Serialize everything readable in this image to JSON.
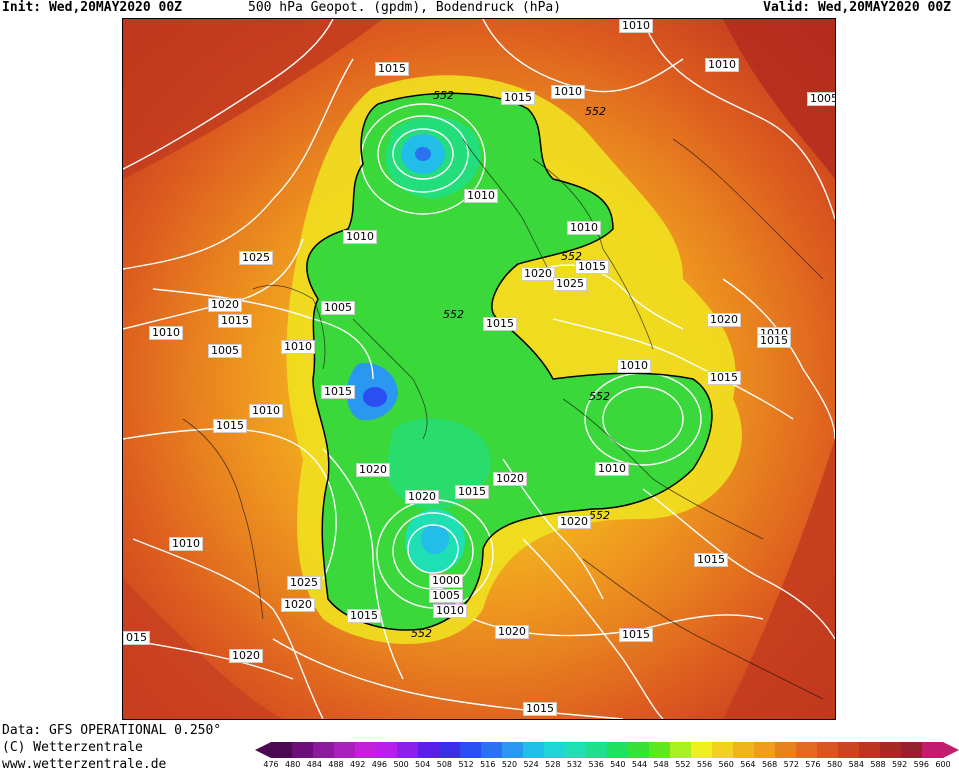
{
  "header": {
    "init": "Init: Wed,20MAY2020 00Z",
    "title": "500 hPa Geopot. (gpdm), Bodendruck (hPa)",
    "valid": "Valid: Wed,20MAY2020 00Z"
  },
  "isobar_labels": [
    "1010",
    "1015",
    "1010",
    "1005",
    "1015",
    "1010",
    "552",
    "1010",
    "1025",
    "1010",
    "1020",
    "1015",
    "1010",
    "1005",
    "1010",
    "1015",
    "1005",
    "1010",
    "1015",
    "1020",
    "1025",
    "1015",
    "1010",
    "1010",
    "1020",
    "1015",
    "552",
    "552",
    "1015",
    "1020",
    "1015",
    "1010",
    "1020",
    "1020",
    "1015",
    "1010",
    "1015",
    "1000",
    "1005",
    "1010",
    "1025",
    "1020",
    "1015",
    "1020",
    "1015",
    "552",
    "1010",
    "1020",
    "1015",
    "015",
    "1020"
  ],
  "geopotential_labels": [
    "552",
    "552",
    "552",
    "552",
    "552",
    "552",
    "552"
  ],
  "footer": {
    "line1": "Data: GFS OPERATIONAL 0.250°",
    "line2": "(C) Wetterzentrale",
    "line3": "www.wetterzentrale.de"
  },
  "legend": {
    "ticks": [
      "476",
      "480",
      "484",
      "488",
      "492",
      "496",
      "500",
      "504",
      "508",
      "512",
      "516",
      "520",
      "524",
      "528",
      "532",
      "536",
      "540",
      "544",
      "548",
      "552",
      "556",
      "560",
      "564",
      "568",
      "572",
      "576",
      "580",
      "584",
      "588",
      "592",
      "596",
      "600"
    ],
    "colors": [
      "#4b0a52",
      "#6c0f7a",
      "#8b1a9c",
      "#a81fbc",
      "#c41fd9",
      "#b81fe8",
      "#8c1fe8",
      "#5b1fe8",
      "#3a2ee8",
      "#2a4ef0",
      "#2a72f0",
      "#2a98f0",
      "#22bde8",
      "#1fd6d6",
      "#1fe0b4",
      "#1fe08c",
      "#1fe060",
      "#3ae03a",
      "#5ee81f",
      "#a8f01f",
      "#f0f01f",
      "#f0d21f",
      "#f0b41f",
      "#f09c1f",
      "#e8821f",
      "#e06a1f",
      "#d8551f",
      "#cc441f",
      "#bb3420",
      "#a82826",
      "#97202e",
      "#c21c6e"
    ]
  }
}
